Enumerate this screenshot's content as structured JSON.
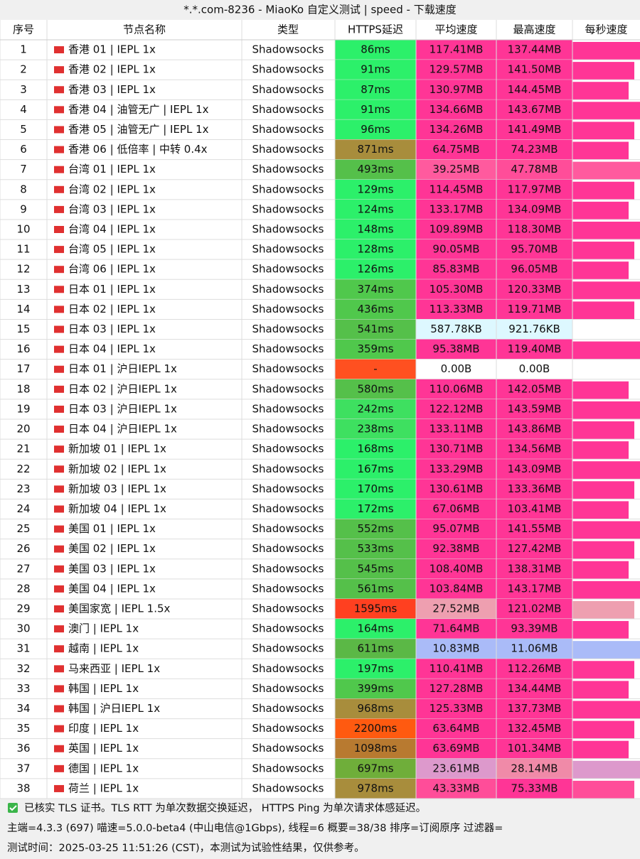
{
  "title": "*.*.com-8236 - MiaoKo 自定义测试 | speed - 下载速度",
  "table": {
    "headers": [
      "序号",
      "节点名称",
      "类型",
      "HTTPS延迟",
      "平均速度",
      "最高速度",
      "每秒速度"
    ],
    "rows": [
      [
        "1",
        "香港 01 | IEPL 1x",
        "Shadowsocks",
        "86ms",
        "117.41MB",
        "137.44MB"
      ],
      [
        "2",
        "香港 02 | IEPL 1x",
        "Shadowsocks",
        "91ms",
        "129.57MB",
        "141.50MB"
      ],
      [
        "3",
        "香港 03 | IEPL 1x",
        "Shadowsocks",
        "87ms",
        "130.97MB",
        "144.45MB"
      ],
      [
        "4",
        "香港 04 | 油管无广 | IEPL 1x",
        "Shadowsocks",
        "91ms",
        "134.66MB",
        "143.67MB"
      ],
      [
        "5",
        "香港 05 | 油管无广 | IEPL 1x",
        "Shadowsocks",
        "96ms",
        "134.26MB",
        "141.49MB"
      ],
      [
        "6",
        "香港 06 | 低倍率 | 中转 0.4x",
        "Shadowsocks",
        "871ms",
        "64.75MB",
        "74.23MB"
      ],
      [
        "7",
        "台湾 01 | IEPL 1x",
        "Shadowsocks",
        "493ms",
        "39.25MB",
        "47.78MB"
      ],
      [
        "8",
        "台湾 02 | IEPL 1x",
        "Shadowsocks",
        "129ms",
        "114.45MB",
        "117.97MB"
      ],
      [
        "9",
        "台湾 03 | IEPL 1x",
        "Shadowsocks",
        "124ms",
        "133.17MB",
        "134.09MB"
      ],
      [
        "10",
        "台湾 04 | IEPL 1x",
        "Shadowsocks",
        "148ms",
        "109.89MB",
        "118.30MB"
      ],
      [
        "11",
        "台湾 05 | IEPL 1x",
        "Shadowsocks",
        "128ms",
        "90.05MB",
        "95.70MB"
      ],
      [
        "12",
        "台湾 06 | IEPL 1x",
        "Shadowsocks",
        "126ms",
        "85.83MB",
        "96.05MB"
      ],
      [
        "13",
        "日本 01 | IEPL 1x",
        "Shadowsocks",
        "374ms",
        "105.30MB",
        "120.33MB"
      ],
      [
        "14",
        "日本 02 | IEPL 1x",
        "Shadowsocks",
        "436ms",
        "113.33MB",
        "119.71MB"
      ],
      [
        "15",
        "日本 03 | IEPL 1x",
        "Shadowsocks",
        "541ms",
        "587.78KB",
        "921.76KB"
      ],
      [
        "16",
        "日本 04 | IEPL 1x",
        "Shadowsocks",
        "359ms",
        "95.38MB",
        "119.40MB"
      ],
      [
        "17",
        "日本 01 | 沪日IEPL 1x",
        "Shadowsocks",
        "-",
        "0.00B",
        "0.00B"
      ],
      [
        "18",
        "日本 02 | 沪日IEPL 1x",
        "Shadowsocks",
        "580ms",
        "110.06MB",
        "142.05MB"
      ],
      [
        "19",
        "日本 03 | 沪日IEPL 1x",
        "Shadowsocks",
        "242ms",
        "122.12MB",
        "143.59MB"
      ],
      [
        "20",
        "日本 04 | 沪日IEPL 1x",
        "Shadowsocks",
        "238ms",
        "133.11MB",
        "143.86MB"
      ],
      [
        "21",
        "新加坡 01 | IEPL 1x",
        "Shadowsocks",
        "168ms",
        "130.71MB",
        "134.56MB"
      ],
      [
        "22",
        "新加坡 02 | IEPL 1x",
        "Shadowsocks",
        "167ms",
        "133.29MB",
        "143.09MB"
      ],
      [
        "23",
        "新加坡 03 | IEPL 1x",
        "Shadowsocks",
        "170ms",
        "130.61MB",
        "133.36MB"
      ],
      [
        "24",
        "新加坡 04 | IEPL 1x",
        "Shadowsocks",
        "172ms",
        "67.06MB",
        "103.41MB"
      ],
      [
        "25",
        "美国 01 | IEPL 1x",
        "Shadowsocks",
        "552ms",
        "95.07MB",
        "141.55MB"
      ],
      [
        "26",
        "美国 02 | IEPL 1x",
        "Shadowsocks",
        "533ms",
        "92.38MB",
        "127.42MB"
      ],
      [
        "27",
        "美国 03 | IEPL 1x",
        "Shadowsocks",
        "545ms",
        "108.40MB",
        "138.31MB"
      ],
      [
        "28",
        "美国 04 | IEPL 1x",
        "Shadowsocks",
        "561ms",
        "103.84MB",
        "143.17MB"
      ],
      [
        "29",
        "美国家宽 | IEPL 1.5x",
        "Shadowsocks",
        "1595ms",
        "27.52MB",
        "121.02MB"
      ],
      [
        "30",
        "澳门 | IEPL 1x",
        "Shadowsocks",
        "164ms",
        "71.64MB",
        "93.39MB"
      ],
      [
        "31",
        "越南 | IEPL 1x",
        "Shadowsocks",
        "611ms",
        "10.83MB",
        "11.06MB"
      ],
      [
        "32",
        "马来西亚 | IEPL 1x",
        "Shadowsocks",
        "197ms",
        "110.41MB",
        "112.26MB"
      ],
      [
        "33",
        "韩国 | IEPL 1x",
        "Shadowsocks",
        "399ms",
        "127.28MB",
        "134.44MB"
      ],
      [
        "34",
        "韩国 | 沪日IEPL 1x",
        "Shadowsocks",
        "968ms",
        "125.33MB",
        "137.73MB"
      ],
      [
        "35",
        "印度 | IEPL 1x",
        "Shadowsocks",
        "2200ms",
        "63.64MB",
        "132.45MB"
      ],
      [
        "36",
        "英国 | IEPL 1x",
        "Shadowsocks",
        "1098ms",
        "63.69MB",
        "101.34MB"
      ],
      [
        "37",
        "德国 | IEPL 1x",
        "Shadowsocks",
        "697ms",
        "23.61MB",
        "28.14MB"
      ],
      [
        "38",
        "荷兰 | IEPL 1x",
        "Shadowsocks",
        "978ms",
        "43.33MB",
        "75.33MB"
      ]
    ],
    "colors": [
      [
        "#2cf06a",
        "#ff3596",
        "#ff3596"
      ],
      [
        "#2cf06a",
        "#ff3596",
        "#ff3596"
      ],
      [
        "#2cf06a",
        "#ff3596",
        "#ff3596"
      ],
      [
        "#2cf06a",
        "#ff3596",
        "#ff3596"
      ],
      [
        "#2cf06a",
        "#ff3596",
        "#ff3596"
      ],
      [
        "#a88d3c",
        "#ff3596",
        "#ff3596"
      ],
      [
        "#55c04a",
        "#ff5a9e",
        "#ff4d99"
      ],
      [
        "#2cf06a",
        "#ff3596",
        "#ff3596"
      ],
      [
        "#2cf06a",
        "#ff3596",
        "#ff3596"
      ],
      [
        "#2cf06a",
        "#ff3596",
        "#ff3596"
      ],
      [
        "#2cf06a",
        "#ff3596",
        "#ff3596"
      ],
      [
        "#2cf06a",
        "#ff3596",
        "#ff3596"
      ],
      [
        "#50c84c",
        "#ff3596",
        "#ff3596"
      ],
      [
        "#50c84c",
        "#ff3596",
        "#ff3596"
      ],
      [
        "#55c04a",
        "#ddf8ff",
        "#ddf8ff"
      ],
      [
        "#50c84c",
        "#ff3596",
        "#ff3596"
      ],
      [
        "#ff5020",
        "#ffffff",
        "#ffffff"
      ],
      [
        "#55c04a",
        "#ff3596",
        "#ff3596"
      ],
      [
        "#3ee060",
        "#ff3596",
        "#ff3596"
      ],
      [
        "#3ee060",
        "#ff3596",
        "#ff3596"
      ],
      [
        "#2cf06a",
        "#ff3596",
        "#ff3596"
      ],
      [
        "#2cf06a",
        "#ff3596",
        "#ff3596"
      ],
      [
        "#2cf06a",
        "#ff3596",
        "#ff3596"
      ],
      [
        "#2cf06a",
        "#ff3596",
        "#ff3596"
      ],
      [
        "#55c04a",
        "#ff3596",
        "#ff3596"
      ],
      [
        "#55c04a",
        "#ff3596",
        "#ff3596"
      ],
      [
        "#55c04a",
        "#ff3596",
        "#ff3596"
      ],
      [
        "#55c04a",
        "#ff3596",
        "#ff3596"
      ],
      [
        "#ff4020",
        "#ee9fb0",
        "#ff3596"
      ],
      [
        "#2cf06a",
        "#ff3596",
        "#ff3596"
      ],
      [
        "#5bb846",
        "#aabbf8",
        "#aabbf8"
      ],
      [
        "#2cf06a",
        "#ff3596",
        "#ff3596"
      ],
      [
        "#50c84c",
        "#ff3596",
        "#ff3596"
      ],
      [
        "#a88d3c",
        "#ff3596",
        "#ff3596"
      ],
      [
        "#ff5a10",
        "#ff3596",
        "#ff3596"
      ],
      [
        "#b87a30",
        "#ff3596",
        "#ff3596"
      ],
      [
        "#6fae3a",
        "#dd99cc",
        "#f08aa8"
      ],
      [
        "#a88d3c",
        "#ff4d99",
        "#ff3596"
      ]
    ]
  },
  "footer": [
    "已核实 TLS 证书。TLS RTT 为单次数据交换延迟， HTTPS Ping 为单次请求体感延迟。",
    "主端=4.3.3 (697) 喵速=5.0.0-beta4 (中山电信@1Gbps), 线程=6 概要=38/38 排序=订阅原序 过滤器=",
    "测试时间：2025-03-25 11:51:26 (CST)，本测试为试验性结果，仅供参考。"
  ]
}
